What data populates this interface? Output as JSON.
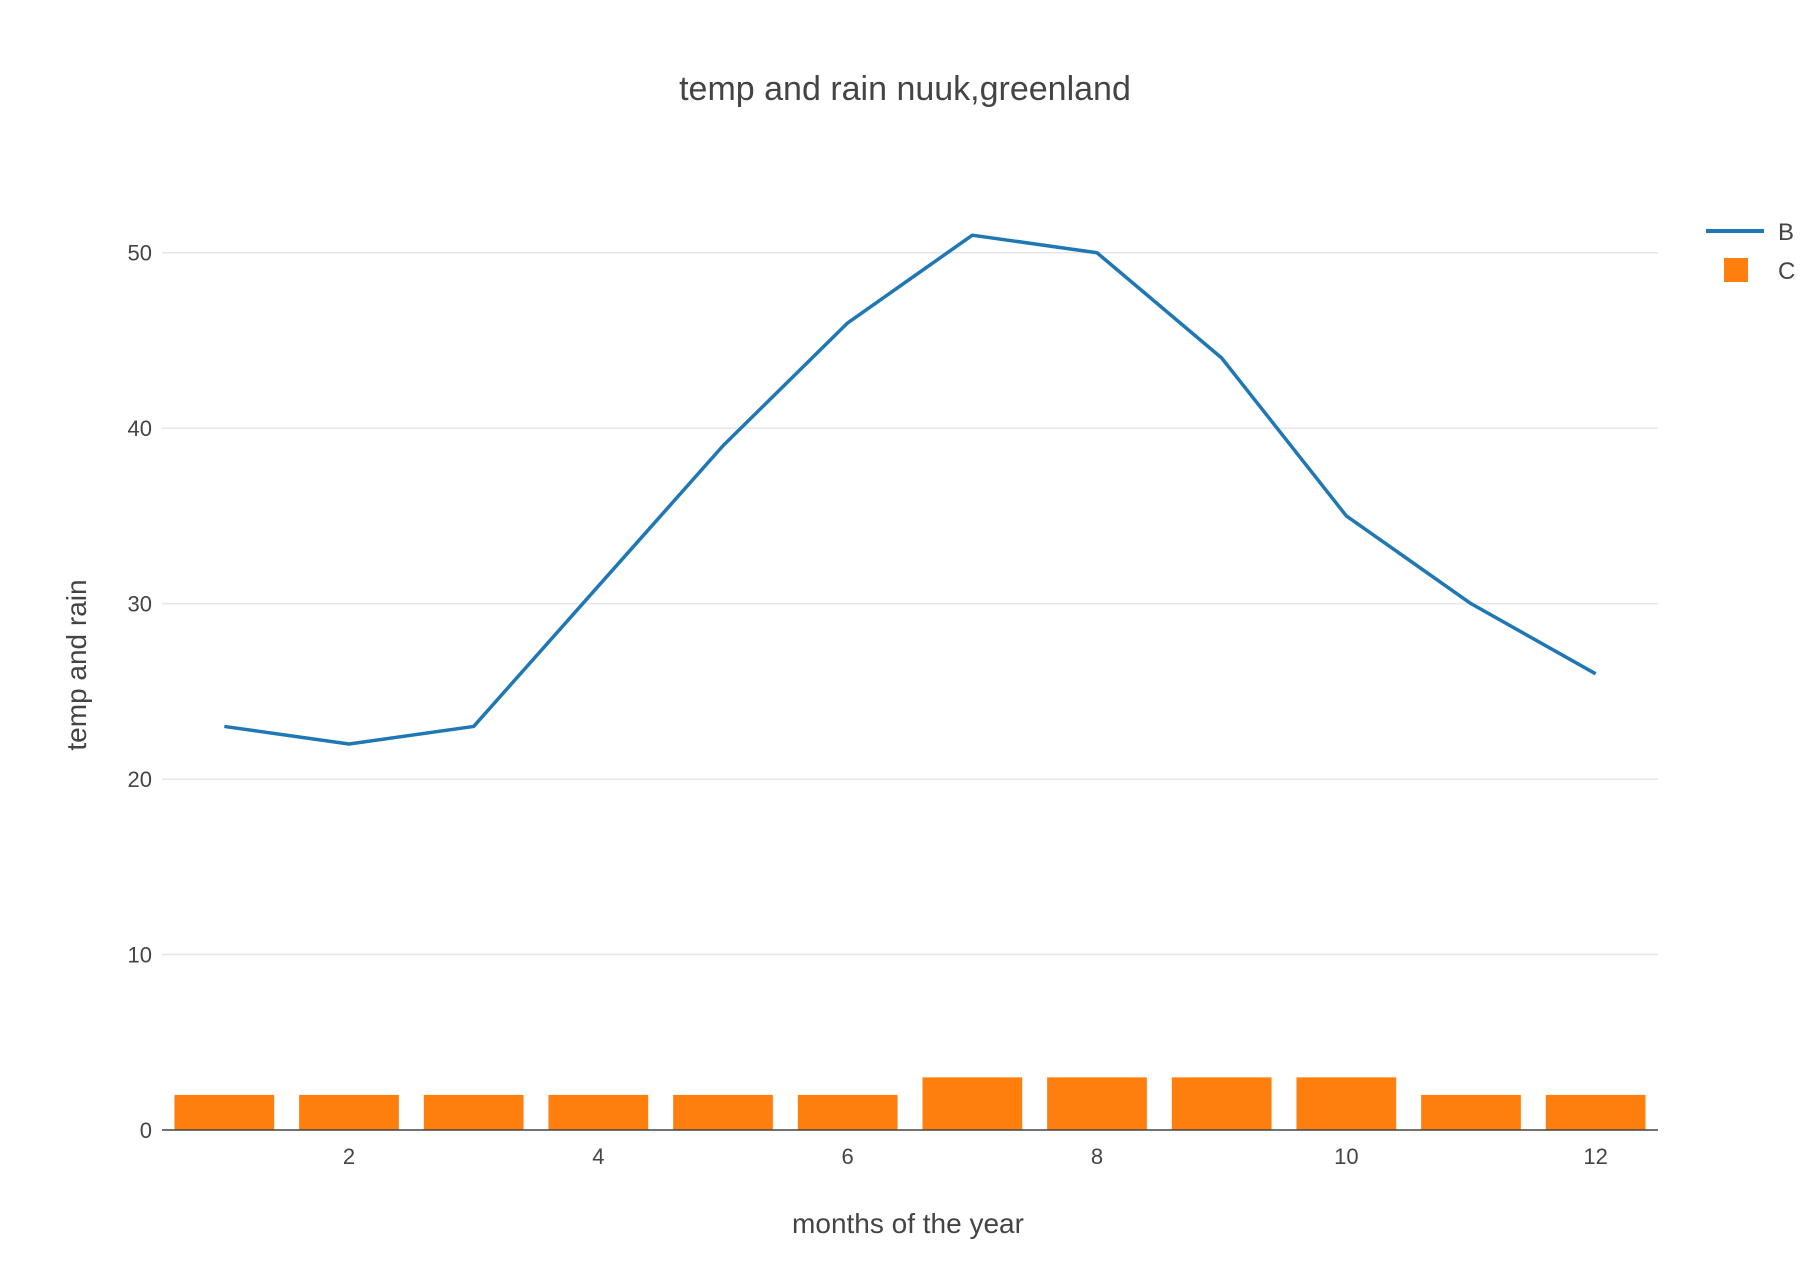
{
  "chart_data": {
    "type": "bar",
    "title": "temp and rain nuuk,greenland",
    "xlabel": "months of the year",
    "ylabel": "temp and rain",
    "x": [
      1,
      2,
      3,
      4,
      5,
      6,
      7,
      8,
      9,
      10,
      11,
      12
    ],
    "xticks": [
      2,
      4,
      6,
      8,
      10,
      12
    ],
    "xlim": [
      0.5,
      12.5
    ],
    "yticks": [
      0,
      10,
      20,
      30,
      40,
      50
    ],
    "ylim": [
      0,
      55
    ],
    "grid": true,
    "legend_position": "top-right",
    "series": [
      {
        "name": "B",
        "type": "line",
        "color": "#1f77b4",
        "values": [
          23,
          22,
          23,
          31,
          39,
          46,
          51,
          50,
          44,
          35,
          30,
          26
        ]
      },
      {
        "name": "C",
        "type": "bar",
        "color": "#ff7f0e",
        "values": [
          2,
          2,
          2,
          2,
          2,
          2,
          3,
          3,
          3,
          3,
          2,
          2
        ]
      }
    ]
  }
}
